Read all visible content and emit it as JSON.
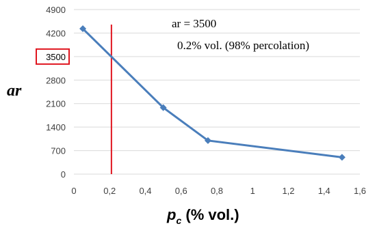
{
  "chart_data": {
    "type": "scatter",
    "x": [
      0.05,
      0.5,
      0.75,
      1.5
    ],
    "series": [
      {
        "values": [
          4330,
          1980,
          1000,
          500
        ]
      }
    ],
    "xlim": [
      0,
      1.6
    ],
    "ylim": [
      0,
      4900
    ],
    "xticks": [
      "0",
      "0,2",
      "0,4",
      "0,6",
      "0,8",
      "1",
      "1,2",
      "1,4",
      "1,6"
    ],
    "yticks": [
      "0",
      "700",
      "1400",
      "2100",
      "2800",
      "3500",
      "4200",
      "4900"
    ],
    "ylabel": "ar",
    "xlabel": {
      "p": "p",
      "sub": "c",
      "rest": " (% vol.)"
    },
    "annotations": [
      "ar = 3500",
      "0.2% vol. (98% percolation)"
    ],
    "highlight_tick": "3500",
    "vline_x": 0.21,
    "grid": true,
    "colors": {
      "series": "#4a7ebb",
      "vline": "#e0141e",
      "grid": "#d9d9d9",
      "highlight_box": "#e0141e"
    }
  }
}
